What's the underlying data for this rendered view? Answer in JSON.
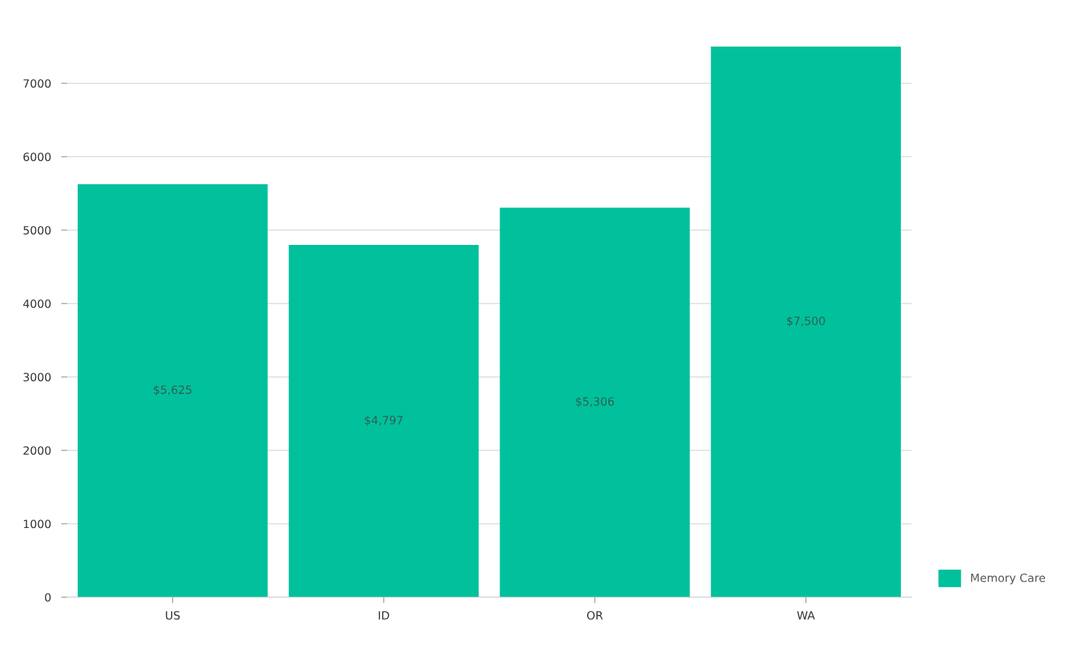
{
  "chart_data": {
    "type": "bar",
    "categories": [
      "US",
      "ID",
      "OR",
      "WA"
    ],
    "series": [
      {
        "name": "Memory Care",
        "color": "#00c19c",
        "values": [
          5625,
          4797,
          5306,
          7500
        ],
        "value_labels": [
          "$5,625",
          "$4,797",
          "$5,306",
          "$7,500"
        ]
      }
    ],
    "ylim": [
      0,
      7500
    ],
    "yticks": [
      0,
      1000,
      2000,
      3000,
      4000,
      5000,
      6000,
      7000
    ],
    "grid": "y",
    "legend": "bottom right"
  }
}
